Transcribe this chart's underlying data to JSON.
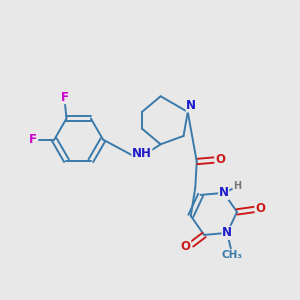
{
  "bg_color": "#e8e8e8",
  "bond_color": "#3a7aaa",
  "bond_width": 1.4,
  "atom_colors": {
    "N": "#1a1acc",
    "O": "#cc1a1a",
    "F": "#cc00cc",
    "H": "#777777",
    "C": "#3a7aaa"
  },
  "font_size_atom": 8.5,
  "font_size_small": 7.0
}
